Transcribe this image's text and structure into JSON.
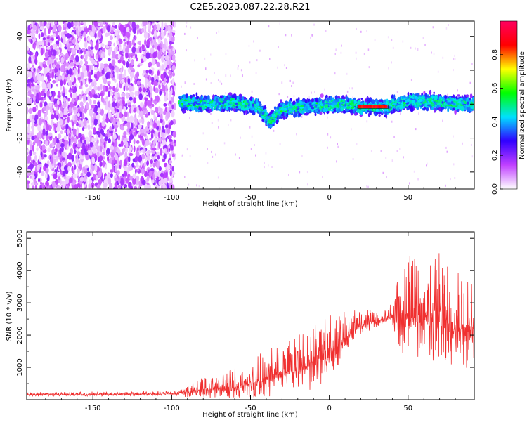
{
  "figure": {
    "title": "C2E5.2023.087.22.28.R21"
  },
  "chart_data": [
    {
      "type": "heatmap",
      "xlabel": "Height of straight line (km)",
      "ylabel": "Frequency (Hz)",
      "xlim": [
        -192,
        92
      ],
      "ylim": [
        -50,
        49
      ],
      "x_ticks": [
        -150,
        -100,
        -50,
        0,
        50
      ],
      "y_ticks": [
        -40,
        -20,
        0,
        20,
        40
      ],
      "noise_region_x": [
        -192,
        -98
      ],
      "signal_region_x": [
        -95,
        92
      ],
      "signal_center_hz": [
        {
          "x": -95,
          "f": 1
        },
        {
          "x": -80,
          "f": 0
        },
        {
          "x": -60,
          "f": 1
        },
        {
          "x": -45,
          "f": -2
        },
        {
          "x": -38,
          "f": -10
        },
        {
          "x": -30,
          "f": -3
        },
        {
          "x": -10,
          "f": -1
        },
        {
          "x": 10,
          "f": 0
        },
        {
          "x": 20,
          "f": -1.5
        },
        {
          "x": 37,
          "f": -1.5
        },
        {
          "x": 50,
          "f": 2
        },
        {
          "x": 70,
          "f": 1
        },
        {
          "x": 92,
          "f": 0
        }
      ],
      "peak_segment": {
        "x_start": 18,
        "x_end": 36,
        "f": -1.5,
        "amplitude": 0.9
      },
      "colorbar": {
        "label": "Normalized spectral amplitude",
        "range": [
          0,
          1
        ],
        "ticks": [
          0.0,
          0.2,
          0.4,
          0.6,
          0.8
        ],
        "colors": [
          "#ffffff",
          "#c040ff",
          "#3000ff",
          "#00e0ff",
          "#00ff00",
          "#ffff00",
          "#ff0000",
          "#ff0060"
        ]
      }
    },
    {
      "type": "line",
      "xlabel": "Height of straight line (km)",
      "ylabel": "SNR (10 * v/v)",
      "xlim": [
        -192,
        92
      ],
      "ylim": [
        0,
        5200
      ],
      "x_ticks": [
        -150,
        -100,
        -50,
        0,
        50
      ],
      "y_ticks": [
        1000,
        2000,
        3000,
        4000,
        5000
      ],
      "color": "#f03030",
      "envelope": [
        {
          "x": -192,
          "base": 150,
          "amp": 80
        },
        {
          "x": -95,
          "base": 180,
          "amp": 100
        },
        {
          "x": -90,
          "base": 250,
          "amp": 300
        },
        {
          "x": -60,
          "base": 400,
          "amp": 600
        },
        {
          "x": -40,
          "base": 600,
          "amp": 900
        },
        {
          "x": -20,
          "base": 900,
          "amp": 1100
        },
        {
          "x": 0,
          "base": 1400,
          "amp": 1300
        },
        {
          "x": 10,
          "base": 1900,
          "amp": 900
        },
        {
          "x": 20,
          "base": 2300,
          "amp": 500
        },
        {
          "x": 37,
          "base": 2550,
          "amp": 250
        },
        {
          "x": 45,
          "base": 2600,
          "amp": 1600
        },
        {
          "x": 60,
          "base": 2500,
          "amp": 2200
        },
        {
          "x": 80,
          "base": 2300,
          "amp": 2000
        },
        {
          "x": 92,
          "base": 2200,
          "amp": 1800
        }
      ]
    }
  ]
}
